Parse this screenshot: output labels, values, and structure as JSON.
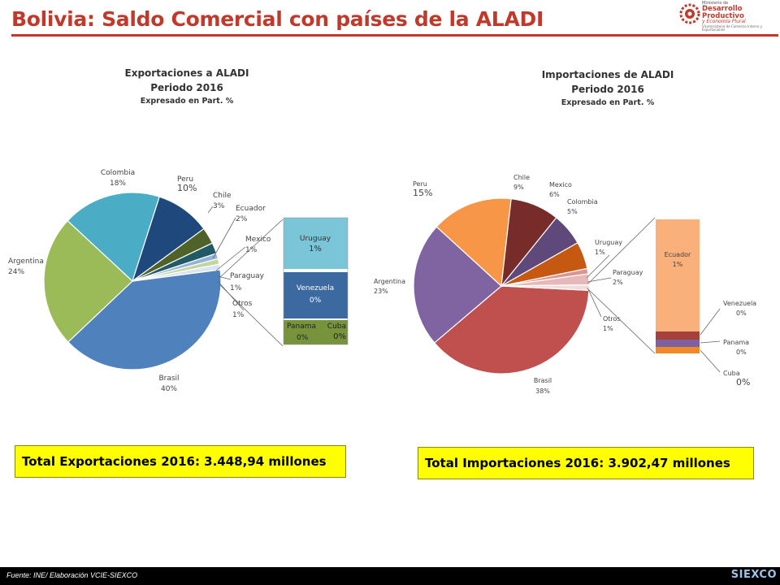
{
  "page": {
    "title": "Bolivia: Saldo Comercial con países de la ALADI",
    "source": "Fuente: INE/ Elaboración VCIE-SIEXCO",
    "footer_logo": "SIEXCO"
  },
  "logo": {
    "line1": "Ministerio de",
    "line2": "Desarrollo Productivo",
    "line3": "y Economía Plural",
    "line4": "Viceministerio de Comercio Interno y Exportaciones"
  },
  "export_total": "Total Exportaciones 2016: 3.448,94 millones",
  "import_total": "Total Importaciones 2016: 3.902,47 millones",
  "colors": {
    "title_red": "#c0392b",
    "total_box": "#ffff00"
  },
  "chart_data": [
    {
      "type": "pie",
      "title": "Exportaciones a ALADI",
      "subtitle": "Periodo 2016",
      "note": "Expresado en Part. %",
      "unit": "%",
      "slices": [
        {
          "label": "Brasil",
          "value_label": "40%",
          "value": 40,
          "color": "#4f81bd"
        },
        {
          "label": "Argentina",
          "value_label": "24%",
          "value": 24,
          "color": "#9bbb59"
        },
        {
          "label": "Colombia",
          "value_label": "18%",
          "value": 18,
          "color": "#4bacc6"
        },
        {
          "label": "Peru",
          "value_label": "10%",
          "value": 10,
          "color": "#1f497d"
        },
        {
          "label": "Chile",
          "value_label": "3%",
          "value": 3,
          "color": "#4f6228"
        },
        {
          "label": "Ecuador",
          "value_label": "2%",
          "value": 2,
          "color": "#215967"
        },
        {
          "label": "Mexico",
          "value_label": "1%",
          "value": 1,
          "color": "#95b3d7"
        },
        {
          "label": "Paraguay",
          "value_label": "1%",
          "value": 1,
          "color": "#c3d69b"
        },
        {
          "label": "Otros",
          "value_label": "1%",
          "value": 1,
          "color": "#dbe5f1"
        }
      ],
      "breakout": [
        {
          "label": "Uruguay",
          "value_label": "1%",
          "color": "#7ac5d8"
        },
        {
          "label": "Venezuela",
          "value_label": "0%",
          "color": "#3c6aa0"
        },
        {
          "label": "Panama",
          "value_label": "0%",
          "color": "#77933c"
        },
        {
          "label": "Cuba",
          "value_label": "0%",
          "color": "#77933c"
        }
      ]
    },
    {
      "type": "pie",
      "title": "Importaciones de ALADI",
      "subtitle": "Periodo 2016",
      "note": "Expresado en Part. %",
      "unit": "%",
      "slices": [
        {
          "label": "Brasil",
          "value_label": "38%",
          "value": 38,
          "color": "#c0504d"
        },
        {
          "label": "Argentina",
          "value_label": "23%",
          "value": 23,
          "color": "#8064a2"
        },
        {
          "label": "Peru",
          "value_label": "15%",
          "value": 15,
          "color": "#f79646"
        },
        {
          "label": "Chile",
          "value_label": "9%",
          "value": 9,
          "color": "#772c2a"
        },
        {
          "label": "Mexico",
          "value_label": "6%",
          "value": 6,
          "color": "#5f497a"
        },
        {
          "label": "Colombia",
          "value_label": "5%",
          "value": 5,
          "color": "#c65911"
        },
        {
          "label": "Uruguay",
          "value_label": "1%",
          "value": 1,
          "color": "#d99694"
        },
        {
          "label": "Paraguay",
          "value_label": "2%",
          "value": 2,
          "color": "#e6b8b7"
        },
        {
          "label": "Otros",
          "value_label": "1%",
          "value": 1,
          "color": "#f2dcdb"
        }
      ],
      "breakout": [
        {
          "label": "Ecuador",
          "value_label": "1%",
          "color": "#fab07a"
        },
        {
          "label": "Venezuela",
          "value_label": "0%",
          "color": "#a5403b"
        },
        {
          "label": "Panama",
          "value_label": "0%",
          "color": "#7d60a0"
        },
        {
          "label": "Cuba",
          "value_label": "0%",
          "color": "#f08a28"
        }
      ]
    }
  ]
}
